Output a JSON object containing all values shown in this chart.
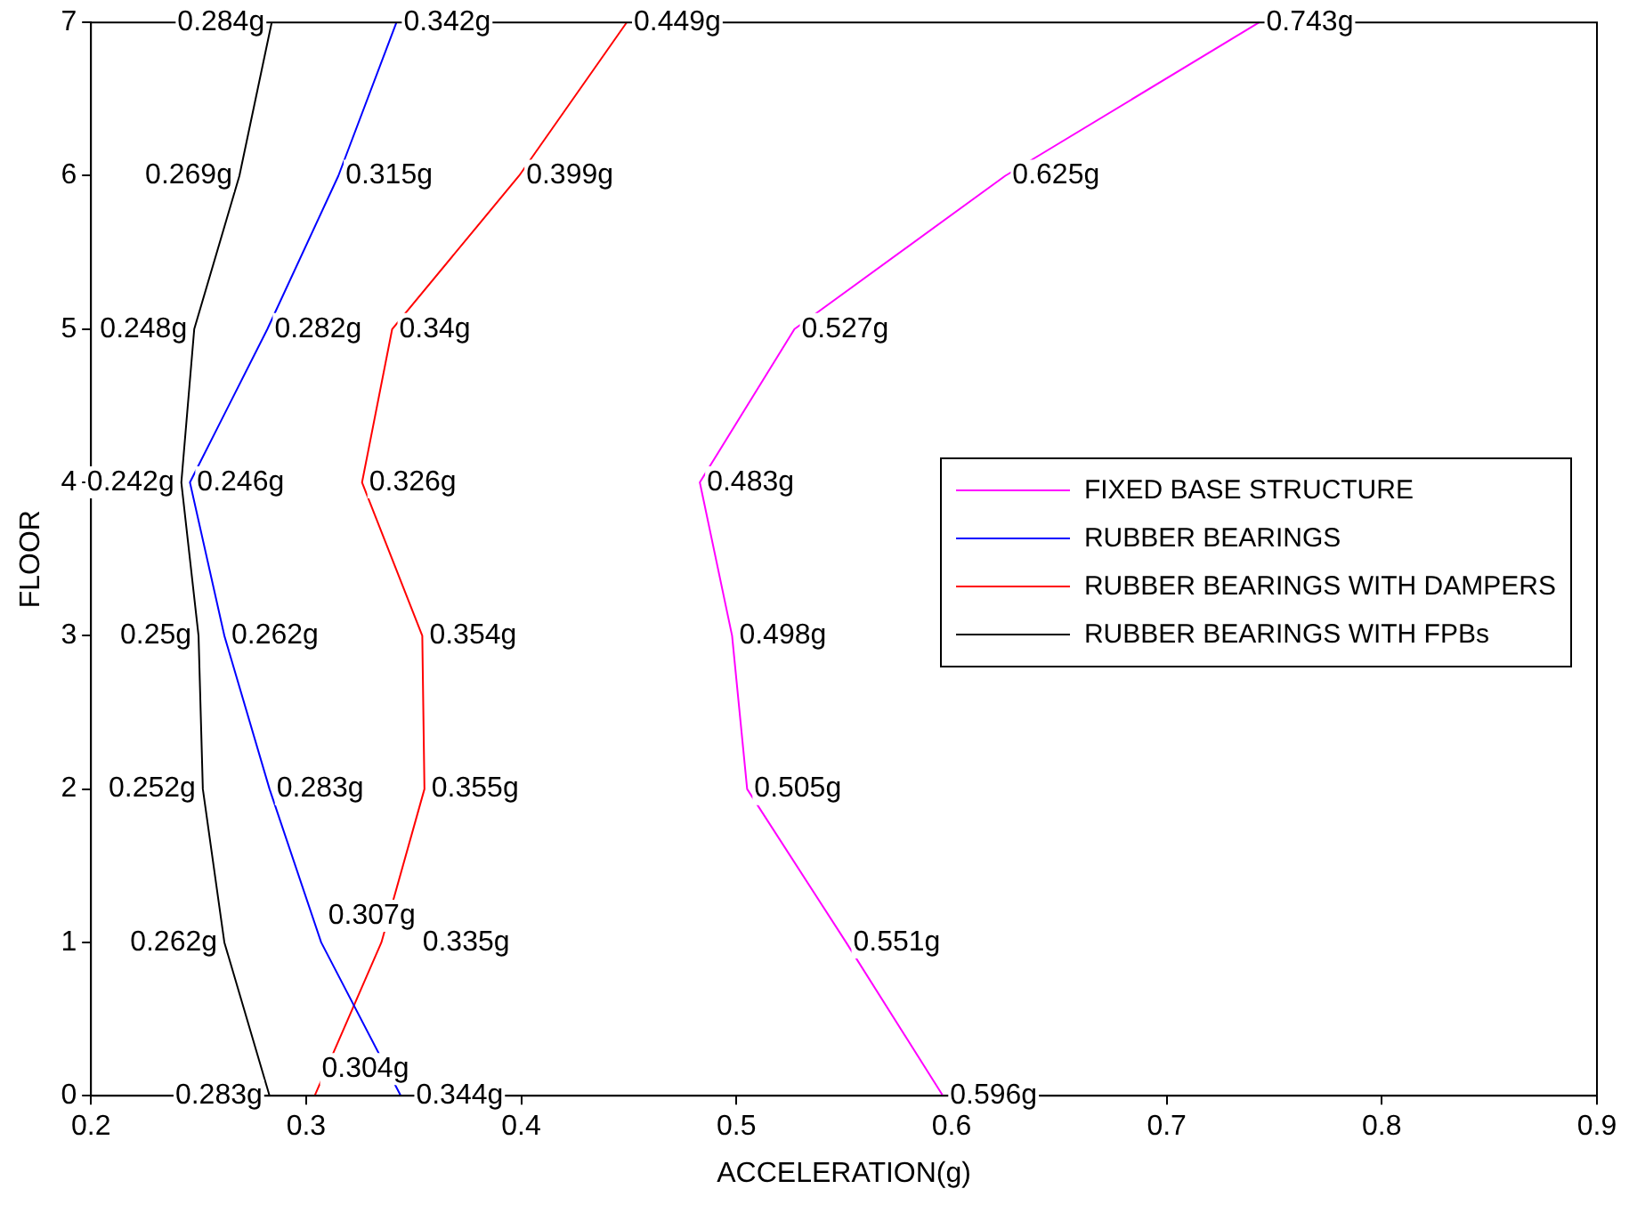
{
  "chart_data": {
    "type": "line",
    "orientation": "horizontal",
    "xlabel": "ACCELERATION(g)",
    "ylabel": "FLOOR",
    "categories": [
      "7",
      "6",
      "5",
      "4",
      "3",
      "2",
      "1",
      "0"
    ],
    "xlim": [
      0.2,
      0.9
    ],
    "xticks": [
      0.2,
      0.3,
      0.4,
      0.5,
      0.6,
      0.7,
      0.8,
      0.9
    ],
    "grid": false,
    "legend": "right",
    "marker": "none",
    "line_style": "solid",
    "series": [
      {
        "name": "FIXED BASE STRUCTURE",
        "color": "#ff00ff",
        "values": [
          0.743,
          0.625,
          0.527,
          0.483,
          0.498,
          0.505,
          0.551,
          0.596
        ],
        "value_labels": [
          "0.743g",
          "0.625g",
          "0.527g",
          "0.483g",
          "0.498g",
          "0.505g",
          "0.551g",
          "0.596g"
        ]
      },
      {
        "name": "RUBBER BEARINGS",
        "color": "#0000ff",
        "values": [
          0.342,
          0.315,
          0.282,
          0.246,
          0.262,
          0.283,
          0.307,
          0.344
        ],
        "value_labels": [
          "0.342g",
          "0.315g",
          "0.282g",
          "0.246g",
          "0.262g",
          "0.283g",
          "0.307g",
          "0.344g"
        ]
      },
      {
        "name": "RUBBER BEARINGS WITH DAMPERS",
        "color": "#ff0000",
        "values": [
          0.449,
          0.399,
          0.34,
          0.326,
          0.354,
          0.355,
          0.335,
          0.304
        ],
        "value_labels": [
          "0.449g",
          "0.399g",
          "0.34g",
          "0.326g",
          "0.354g",
          "0.355g",
          "0.335g",
          "0.304g"
        ]
      },
      {
        "name": "RUBBER BEARINGS WITH FPBs",
        "color": "#000000",
        "values": [
          0.284,
          0.269,
          0.248,
          0.242,
          0.25,
          0.252,
          0.262,
          0.283
        ],
        "value_labels": [
          "0.284g",
          "0.269g",
          "0.248g",
          "0.242g",
          "0.25g",
          "0.252g",
          "0.262g",
          "0.283g"
        ]
      }
    ]
  }
}
